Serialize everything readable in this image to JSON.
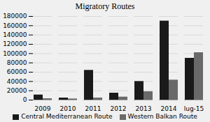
{
  "chart_data": {
    "type": "bar",
    "title": "Migratory Routes",
    "categories": [
      "2009",
      "2010",
      "2011",
      "2012",
      "2013",
      "2014",
      "lug-15"
    ],
    "series": [
      {
        "name": "Central Mediterranean Route",
        "color": "#1a1a1a",
        "values": [
          11000,
          4500,
          64000,
          15000,
          40000,
          170000,
          90000
        ]
      },
      {
        "name": "Western Balkan Route",
        "color": "#696969",
        "values": [
          3000,
          2500,
          4500,
          6500,
          18000,
          43000,
          102000
        ]
      }
    ],
    "ylim": [
      0,
      180000
    ],
    "yticks": [
      0,
      20000,
      40000,
      60000,
      80000,
      100000,
      120000,
      140000,
      160000,
      180000
    ],
    "grid": true,
    "legend": "bottom"
  }
}
